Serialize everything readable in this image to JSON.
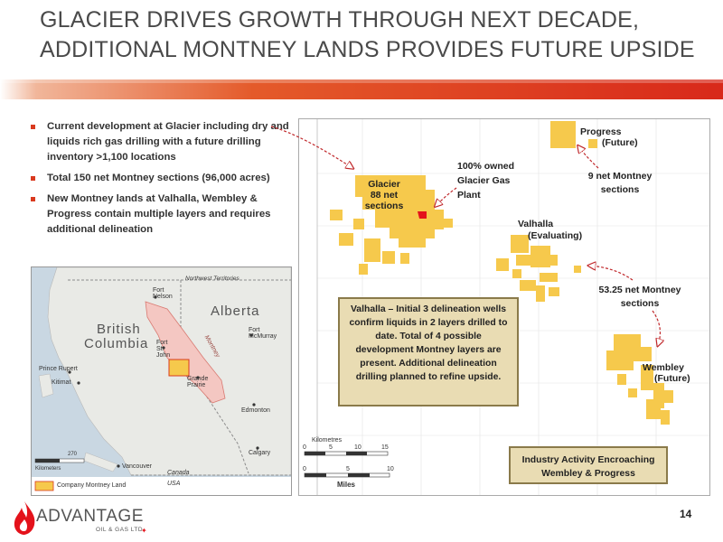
{
  "title": {
    "line1": "GLACIER DRIVES GROWTH THROUGH NEXT DECADE,",
    "line2": "ADDITIONAL MONTNEY LANDS PROVIDES FUTURE UPSIDE"
  },
  "bullets": [
    "Current development at Glacier including dry and liquids rich gas drilling with a future drilling inventory >1,100 locations",
    "Total 150 net Montney sections (96,000 acres)",
    "New Montney lands at Valhalla, Wembley & Progress contain multiple layers and requires additional delineation"
  ],
  "inset_map": {
    "labels": {
      "nwt": "Northwest Territories",
      "bc1": "British",
      "bc2": "Columbia",
      "alberta": "Alberta",
      "fort_nelson": "Fort Nelson",
      "fort_st_john": "Fort St. John",
      "fort_mcmurray": "Fort McMurray",
      "prince_rupert": "Prince Rupert",
      "kitimat": "Kitimat",
      "grande_prairie": "Grande Prairie",
      "edmonton": "Edmonton",
      "calgary": "Calgary",
      "vancouver": "Vancouver",
      "canada": "Canada",
      "usa": "USA",
      "montney": "Montney",
      "scale_270": "270",
      "kilometers": "Kilometers",
      "legend": "Company Montney Land"
    }
  },
  "land_map": {
    "glacier_label": "Glacier\n88 net\nsections",
    "glacier_l1": "Glacier",
    "glacier_l2": "88 net",
    "glacier_l3": "sections",
    "plant_l1": "100% owned",
    "plant_l2": "Glacier Gas",
    "plant_l3": "Plant",
    "progress": "Progress",
    "progress_future": "(Future)",
    "progress_sections_l1": "9 net Montney",
    "progress_sections_l2": "sections",
    "valhalla": "Valhalla",
    "valhalla_status": "(Evaluating)",
    "valhalla_sections_l1": "53.25 net Montney",
    "valhalla_sections_l2": "sections",
    "wembley": "Wembley",
    "wembley_future": "(Future)",
    "valhalla_callout": "Valhalla – Initial 3 delineation wells confirm liquids in 2 layers drilled to date. Total of 4 possible development Montney layers are present.   Additional delineation drilling planned to refine upside.",
    "industry_callout": "Industry Activity Encroaching Wembley & Progress",
    "km_label": "Kilometres",
    "miles_label": "Miles",
    "km_ticks": [
      "0",
      "5",
      "10",
      "15"
    ],
    "mi_ticks": [
      "0",
      "5",
      "10"
    ]
  },
  "page_number": "14",
  "logo": {
    "word": "ADVANTAGE",
    "sub": "OIL & GAS LTD."
  },
  "colors": {
    "accent": "#d93a1f",
    "land": "#f6c94c",
    "callout": "#e9dcb3"
  }
}
